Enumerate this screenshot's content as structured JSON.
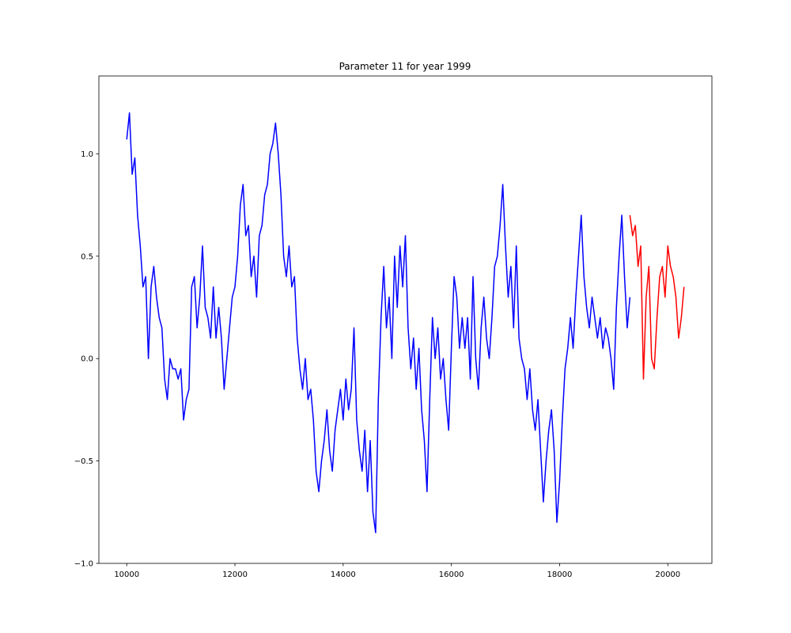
{
  "chart_data": {
    "type": "line",
    "title": "Parameter 11 for year 1999",
    "x": [
      10000,
      10050,
      10100,
      10150,
      10200,
      10250,
      10300,
      10350,
      10400,
      10450,
      10500,
      10550,
      10600,
      10650,
      10700,
      10750,
      10800,
      10850,
      10900,
      10950,
      11000,
      11050,
      11100,
      11150,
      11200,
      11250,
      11300,
      11350,
      11400,
      11450,
      11500,
      11550,
      11600,
      11650,
      11700,
      11750,
      11800,
      11850,
      11900,
      11950,
      12000,
      12050,
      12100,
      12150,
      12200,
      12250,
      12300,
      12350,
      12400,
      12450,
      12500,
      12550,
      12600,
      12650,
      12700,
      12750,
      12800,
      12850,
      12900,
      12950,
      13000,
      13050,
      13100,
      13150,
      13200,
      13250,
      13300,
      13350,
      13400,
      13450,
      13500,
      13550,
      13600,
      13650,
      13700,
      13750,
      13800,
      13850,
      13900,
      13950,
      14000,
      14050,
      14100,
      14150,
      14200,
      14250,
      14300,
      14350,
      14400,
      14450,
      14500,
      14550,
      14600,
      14650,
      14700,
      14750,
      14800,
      14850,
      14900,
      14950,
      15000,
      15050,
      15100,
      15150,
      15200,
      15250,
      15300,
      15350,
      15400,
      15450,
      15500,
      15550,
      15600,
      15650,
      15700,
      15750,
      15800,
      15850,
      15900,
      15950,
      16000,
      16050,
      16100,
      16150,
      16200,
      16250,
      16300,
      16350,
      16400,
      16450,
      16500,
      16550,
      16600,
      16650,
      16700,
      16750,
      16800,
      16850,
      16900,
      16950,
      17000,
      17050,
      17100,
      17150,
      17200,
      17250,
      17300,
      17350,
      17400,
      17450,
      17500,
      17550,
      17600,
      17650,
      17700,
      17750,
      17800,
      17850,
      17900,
      17950,
      18000,
      18050,
      18100,
      18150,
      18200,
      18250,
      18300,
      18350,
      18400,
      18450,
      18500,
      18550,
      18600,
      18650,
      18700,
      18750,
      18800,
      18850,
      18900,
      18950,
      19000,
      19050,
      19100,
      19150,
      19200,
      19250,
      19300,
      19350,
      19400,
      19450,
      19500,
      19550,
      19600,
      19650,
      19700,
      19750,
      19800,
      19850,
      19900,
      19950,
      20000,
      20050,
      20100,
      20150,
      20200,
      20250,
      20300
    ],
    "series": [
      {
        "color": "#0000ff",
        "values": [
          1.07,
          1.2,
          0.9,
          0.98,
          0.7,
          0.55,
          0.35,
          0.4,
          0.0,
          0.35,
          0.45,
          0.3,
          0.2,
          0.15,
          -0.1,
          -0.2,
          0.0,
          -0.05,
          -0.05,
          -0.1,
          -0.05,
          -0.3,
          -0.2,
          -0.15,
          0.35,
          0.4,
          0.15,
          0.3,
          0.55,
          0.25,
          0.2,
          0.1,
          0.35,
          0.1,
          0.25,
          0.1,
          -0.15,
          0.0,
          0.15,
          0.3,
          0.35,
          0.5,
          0.75,
          0.85,
          0.6,
          0.65,
          0.4,
          0.5,
          0.3,
          0.6,
          0.65,
          0.8,
          0.85,
          1.0,
          1.05,
          1.15,
          1.0,
          0.8,
          0.5,
          0.4,
          0.55,
          0.35,
          0.4,
          0.1,
          -0.05,
          -0.15,
          0.0,
          -0.2,
          -0.15,
          -0.3,
          -0.55,
          -0.65,
          -0.5,
          -0.4,
          -0.25,
          -0.45,
          -0.55,
          -0.35,
          -0.25,
          -0.15,
          -0.3,
          -0.1,
          -0.25,
          -0.15,
          0.15,
          -0.3,
          -0.45,
          -0.55,
          -0.35,
          -0.65,
          -0.4,
          -0.75,
          -0.85,
          -0.2,
          0.2,
          0.45,
          0.15,
          0.3,
          0.0,
          0.5,
          0.25,
          0.55,
          0.35,
          0.6,
          0.15,
          -0.05,
          0.1,
          -0.15,
          0.05,
          -0.25,
          -0.4,
          -0.65,
          -0.2,
          0.2,
          0.0,
          0.15,
          -0.1,
          0.0,
          -0.2,
          -0.35,
          0.05,
          0.4,
          0.3,
          0.05,
          0.2,
          0.05,
          0.2,
          -0.1,
          0.4,
          0.0,
          -0.15,
          0.15,
          0.3,
          0.1,
          0.0,
          0.2,
          0.45,
          0.5,
          0.65,
          0.85,
          0.55,
          0.3,
          0.45,
          0.15,
          0.55,
          0.1,
          0.0,
          -0.05,
          -0.2,
          -0.05,
          -0.25,
          -0.35,
          -0.2,
          -0.45,
          -0.7,
          -0.5,
          -0.35,
          -0.25,
          -0.45,
          -0.8,
          -0.6,
          -0.3,
          -0.05,
          0.05,
          0.2,
          0.05,
          0.3,
          0.5,
          0.7,
          0.4,
          0.25,
          0.15,
          0.3,
          0.2,
          0.1,
          0.2,
          0.05,
          0.15,
          0.1,
          0.0,
          -0.15,
          0.25,
          0.5,
          0.7,
          0.4,
          0.15,
          0.3,
          null,
          null,
          null,
          null,
          null,
          null,
          null,
          null,
          null,
          null,
          null,
          null,
          null,
          null,
          null,
          null,
          null,
          null,
          null,
          null
        ]
      },
      {
        "color": "#ff0000",
        "values": [
          null,
          null,
          null,
          null,
          null,
          null,
          null,
          null,
          null,
          null,
          null,
          null,
          null,
          null,
          null,
          null,
          null,
          null,
          null,
          null,
          null,
          null,
          null,
          null,
          null,
          null,
          null,
          null,
          null,
          null,
          null,
          null,
          null,
          null,
          null,
          null,
          null,
          null,
          null,
          null,
          null,
          null,
          null,
          null,
          null,
          null,
          null,
          null,
          null,
          null,
          null,
          null,
          null,
          null,
          null,
          null,
          null,
          null,
          null,
          null,
          null,
          null,
          null,
          null,
          null,
          null,
          null,
          null,
          null,
          null,
          null,
          null,
          null,
          null,
          null,
          null,
          null,
          null,
          null,
          null,
          null,
          null,
          null,
          null,
          null,
          null,
          null,
          null,
          null,
          null,
          null,
          null,
          null,
          null,
          null,
          null,
          null,
          null,
          null,
          null,
          null,
          null,
          null,
          null,
          null,
          null,
          null,
          null,
          null,
          null,
          null,
          null,
          null,
          null,
          null,
          null,
          null,
          null,
          null,
          null,
          null,
          null,
          null,
          null,
          null,
          null,
          null,
          null,
          null,
          null,
          null,
          null,
          null,
          null,
          null,
          null,
          null,
          null,
          null,
          null,
          null,
          null,
          null,
          null,
          null,
          null,
          null,
          null,
          null,
          null,
          null,
          null,
          null,
          null,
          null,
          null,
          null,
          null,
          null,
          null,
          null,
          null,
          null,
          null,
          null,
          null,
          null,
          null,
          null,
          null,
          null,
          null,
          null,
          null,
          null,
          null,
          null,
          null,
          null,
          null,
          null,
          null,
          null,
          null,
          null,
          null,
          0.7,
          0.6,
          0.65,
          0.45,
          0.55,
          -0.1,
          0.3,
          0.45,
          0.0,
          -0.05,
          0.2,
          0.4,
          0.45,
          0.3,
          0.55,
          0.45,
          0.4,
          0.3,
          0.1,
          0.2,
          0.35
        ]
      }
    ],
    "xlim": [
      9485,
      20815
    ],
    "ylim": [
      -1.0,
      1.38
    ],
    "xticks": [
      10000,
      12000,
      14000,
      16000,
      18000,
      20000
    ],
    "yticks": [
      {
        "value": -1.0,
        "label": "−1.0"
      },
      {
        "value": -0.5,
        "label": "−0.5"
      },
      {
        "value": 0.0,
        "label": "0.0"
      },
      {
        "value": 0.5,
        "label": "0.5"
      },
      {
        "value": 1.0,
        "label": "1.0"
      }
    ]
  }
}
